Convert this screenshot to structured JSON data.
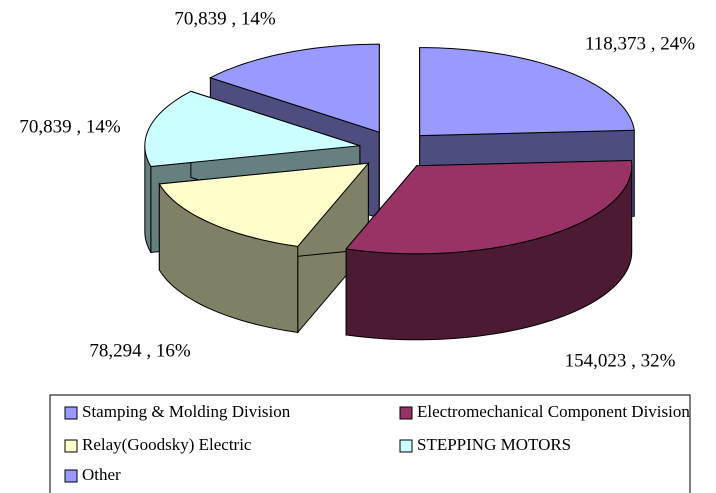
{
  "chart_data": {
    "type": "pie",
    "categories": [
      "Stamping & Molding Division",
      "Electromechanical Component Division",
      "Relay(Goodsky) Electric",
      "STEPPING MOTORS",
      "Other"
    ],
    "values": [
      118373,
      154023,
      78294,
      70839,
      70839
    ],
    "value_labels": [
      "118,373 , 24%",
      "154,023 , 32%",
      "78,294 , 16%",
      "70,839 , 14%",
      "70,839 , 14%"
    ],
    "colors": [
      "#9999ff",
      "#993366",
      "#ffffcc",
      "#ccffff",
      "#9999ff"
    ],
    "legend": "bottom"
  }
}
